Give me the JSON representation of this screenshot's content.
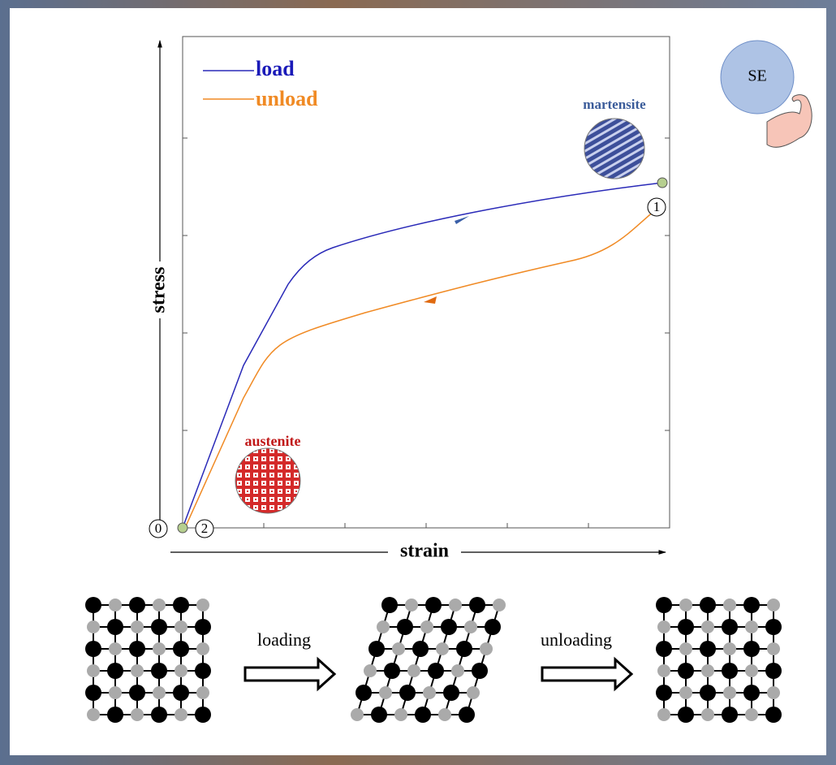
{
  "plot": {
    "y_axis_label": "stress",
    "x_axis_label": "strain",
    "legend": [
      "load",
      "unload"
    ],
    "phases": [
      "austenite",
      "martensite"
    ],
    "points": [
      "0",
      "2",
      "1"
    ]
  },
  "badge": "SE",
  "process": [
    "loading",
    "unloading"
  ]
}
